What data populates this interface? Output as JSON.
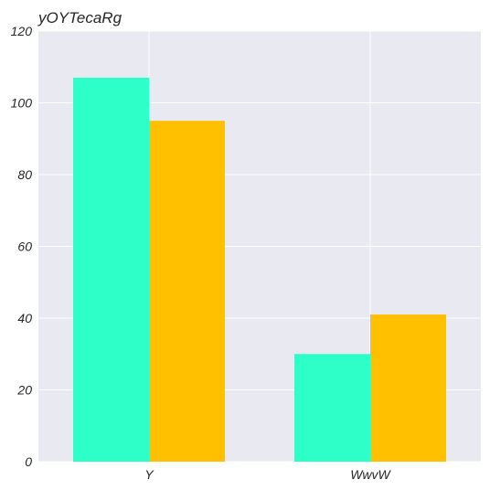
{
  "chart_data": {
    "type": "bar",
    "title": "yOYTecaRg",
    "xlabel": "",
    "ylabel": "",
    "categories": [
      "Y",
      "WwvW"
    ],
    "series": [
      {
        "values": [
          107,
          30
        ],
        "color": "#2effc8"
      },
      {
        "values": [
          95,
          41
        ],
        "color": "#ffc000"
      }
    ],
    "ylim": [
      0,
      120
    ],
    "yticks": [
      0,
      20,
      40,
      60,
      80,
      100,
      120
    ],
    "grid": true,
    "background": "#e9e9f1",
    "grid_color": "#ffffff"
  }
}
